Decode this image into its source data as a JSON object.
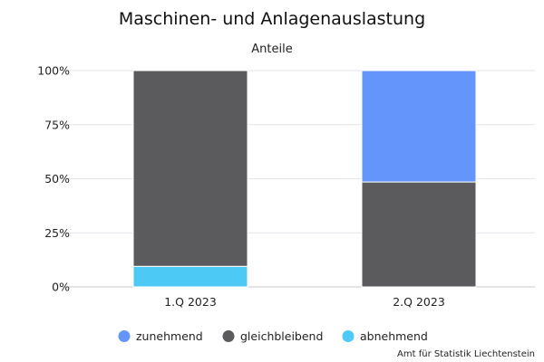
{
  "chart_data": {
    "type": "bar",
    "stacked": true,
    "title": "Maschinen- und Anlagenauslastung",
    "subtitle": "Anteile",
    "categories": [
      "1.Q 2023",
      "2.Q 2023"
    ],
    "series": [
      {
        "name": "abnehmend",
        "color": "#4dc9f6",
        "values": [
          9.5,
          0
        ]
      },
      {
        "name": "gleichbleibend",
        "color": "#5b5b5e",
        "values": [
          90.5,
          48.5
        ]
      },
      {
        "name": "zunehmend",
        "color": "#6495fb",
        "values": [
          0,
          51.5
        ]
      }
    ],
    "legend_order": [
      "zunehmend",
      "gleichbleibend",
      "abnehmend"
    ],
    "ylim": [
      0,
      100
    ],
    "yticks": [
      0,
      25,
      50,
      75,
      100
    ],
    "ytick_labels": [
      "0%",
      "25%",
      "50%",
      "75%",
      "100%"
    ],
    "grid": true,
    "legend_position": "bottom",
    "source": "Amt für Statistik Liechtenstein"
  }
}
